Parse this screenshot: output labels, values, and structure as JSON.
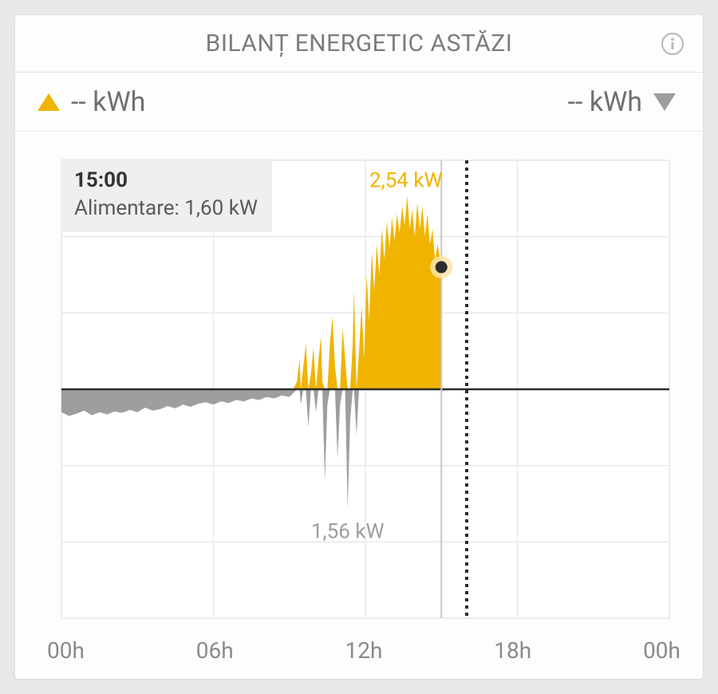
{
  "header": {
    "title": "BILANȚ ENERGETIC ASTĂZI",
    "title_color": "#7c7c7c",
    "title_fontsize": 30
  },
  "legend": {
    "feedin": {
      "label": "-- kWh",
      "color": "#f0b400",
      "triangle": "up"
    },
    "draw": {
      "label": "-- kWh",
      "color": "#9e9e9e",
      "triangle": "down"
    },
    "font_color": "#6f6f6f",
    "fontsize": 34
  },
  "tooltip": {
    "time": "15:00",
    "line2": "Alimentare: 1,60 kW",
    "bg": "#efefef",
    "fontsize": 26
  },
  "chart": {
    "type": "area-bipolar",
    "x_domain_hours": [
      0,
      24
    ],
    "x_ticks": [
      "00h",
      "06h",
      "12h",
      "18h",
      "00h"
    ],
    "x_tick_fontsize": 28,
    "y_domain_kw": [
      -3.0,
      3.0
    ],
    "y_gridlines_kw": [
      -3.0,
      -2.0,
      -1.0,
      0,
      1.0,
      2.0,
      3.0
    ],
    "zero_line_color": "#2b2b2b",
    "grid_color": "#e9e9e9",
    "background_color": "#ffffff",
    "cursor_hour": 15.0,
    "cursor_line_color": "#c8c8c8",
    "now_hour": 16.0,
    "now_line_color": "#2b2b2b",
    "now_line_dash": "4 5",
    "pos_series_color": "#f0b400",
    "neg_series_color": "#9e9e9e",
    "peak_pos_label": "2,54 kW",
    "peak_pos_label_color": "#f0b400",
    "peak_neg_label": "1,56 kW",
    "peak_neg_label_color": "#9e9e9e",
    "annotation_fontsize": 26,
    "marker": {
      "hour": 15.0,
      "kw": 1.6,
      "fill": "#2b2b2b",
      "halo": "#f9e3a8"
    },
    "series": [
      [
        0.0,
        -0.3
      ],
      [
        0.3,
        -0.35
      ],
      [
        0.6,
        -0.32
      ],
      [
        0.9,
        -0.28
      ],
      [
        1.2,
        -0.34
      ],
      [
        1.5,
        -0.3
      ],
      [
        1.8,
        -0.33
      ],
      [
        2.1,
        -0.29
      ],
      [
        2.4,
        -0.31
      ],
      [
        2.7,
        -0.27
      ],
      [
        3.0,
        -0.3
      ],
      [
        3.3,
        -0.24
      ],
      [
        3.6,
        -0.28
      ],
      [
        3.9,
        -0.26
      ],
      [
        4.2,
        -0.22
      ],
      [
        4.5,
        -0.25
      ],
      [
        4.8,
        -0.2
      ],
      [
        5.1,
        -0.23
      ],
      [
        5.4,
        -0.19
      ],
      [
        5.7,
        -0.17
      ],
      [
        6.0,
        -0.2
      ],
      [
        6.3,
        -0.16
      ],
      [
        6.6,
        -0.18
      ],
      [
        6.9,
        -0.14
      ],
      [
        7.2,
        -0.16
      ],
      [
        7.5,
        -0.12
      ],
      [
        7.8,
        -0.14
      ],
      [
        8.1,
        -0.1
      ],
      [
        8.4,
        -0.12
      ],
      [
        8.7,
        -0.08
      ],
      [
        9.0,
        -0.1
      ],
      [
        9.15,
        -0.05
      ],
      [
        9.3,
        0.1
      ],
      [
        9.4,
        0.4
      ],
      [
        9.45,
        -0.2
      ],
      [
        9.55,
        0.3
      ],
      [
        9.65,
        0.6
      ],
      [
        9.75,
        -0.5
      ],
      [
        9.85,
        0.2
      ],
      [
        9.95,
        0.55
      ],
      [
        10.05,
        -0.3
      ],
      [
        10.15,
        0.4
      ],
      [
        10.25,
        0.7
      ],
      [
        10.3,
        0.1
      ],
      [
        10.4,
        -1.2
      ],
      [
        10.5,
        -0.2
      ],
      [
        10.6,
        0.6
      ],
      [
        10.7,
        0.95
      ],
      [
        10.8,
        0.3
      ],
      [
        10.9,
        -0.9
      ],
      [
        11.0,
        -0.2
      ],
      [
        11.1,
        0.8
      ],
      [
        11.2,
        0.4
      ],
      [
        11.3,
        -1.56
      ],
      [
        11.4,
        -0.4
      ],
      [
        11.5,
        0.6
      ],
      [
        11.55,
        1.3
      ],
      [
        11.65,
        -0.6
      ],
      [
        11.75,
        0.5
      ],
      [
        11.85,
        1.1
      ],
      [
        11.95,
        0.4
      ],
      [
        12.05,
        1.5
      ],
      [
        12.15,
        0.9
      ],
      [
        12.25,
        1.8
      ],
      [
        12.35,
        1.3
      ],
      [
        12.45,
        1.9
      ],
      [
        12.55,
        1.5
      ],
      [
        12.65,
        2.1
      ],
      [
        12.75,
        1.7
      ],
      [
        12.85,
        2.2
      ],
      [
        12.95,
        1.85
      ],
      [
        13.05,
        2.25
      ],
      [
        13.15,
        1.95
      ],
      [
        13.25,
        2.3
      ],
      [
        13.35,
        2.05
      ],
      [
        13.45,
        2.4
      ],
      [
        13.55,
        2.15
      ],
      [
        13.65,
        2.54
      ],
      [
        13.75,
        2.1
      ],
      [
        13.85,
        2.35
      ],
      [
        13.95,
        2.0
      ],
      [
        14.05,
        2.45
      ],
      [
        14.15,
        2.1
      ],
      [
        14.25,
        2.4
      ],
      [
        14.35,
        2.0
      ],
      [
        14.45,
        2.3
      ],
      [
        14.55,
        1.9
      ],
      [
        14.65,
        2.1
      ],
      [
        14.75,
        1.7
      ],
      [
        14.85,
        1.9
      ],
      [
        15.0,
        1.6
      ]
    ]
  },
  "colors": {
    "page_bg": "#e8e8e8",
    "card_bg": "#fdfdfd",
    "divider": "#e2e2e2",
    "info_icon": "#bcbcbc"
  }
}
